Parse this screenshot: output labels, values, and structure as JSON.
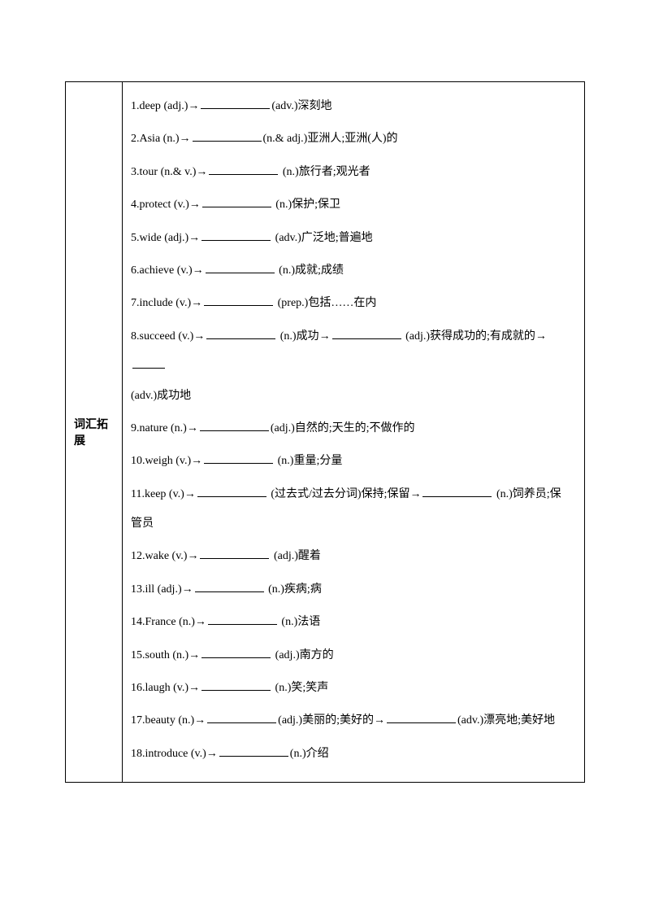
{
  "sidebar_label": "词汇拓展",
  "items": [
    {
      "n": "1",
      "word": "deep",
      "pos1": "(adj.)",
      "arrow": "→",
      "blank": true,
      "pos2": "(adv.)",
      "def": "深刻地"
    },
    {
      "n": "2",
      "word": "Asia",
      "pos1": "(n.)",
      "arrow": "→",
      "blank": true,
      "pos2": "(n.& adj.)",
      "def": "亚洲人;亚洲(人)的"
    },
    {
      "n": "3",
      "word": "tour",
      "pos1": "(n.& v.)",
      "arrow": "→",
      "blank": true,
      "pos2": " (n.)",
      "def": "旅行者;观光者"
    },
    {
      "n": "4",
      "word": "protect",
      "pos1": "(v.)",
      "arrow": "→",
      "blank": true,
      "pos2": " (n.)",
      "def": "保护;保卫"
    },
    {
      "n": "5",
      "word": "wide",
      "pos1": "(adj.)",
      "arrow": "→",
      "blank": true,
      "pos2": " (adv.)",
      "def": "广泛地;普遍地"
    },
    {
      "n": "6",
      "word": "achieve",
      "pos1": "(v.)",
      "arrow": "→",
      "blank": true,
      "pos2": " (n.)",
      "def": "成就;成绩"
    },
    {
      "n": "7",
      "word": "include",
      "pos1": "(v.)",
      "arrow": "→",
      "blank": true,
      "pos2": " (prep.)",
      "def": "包括……在内"
    },
    {
      "n": "8",
      "word": "succeed",
      "pos1": "(v.)",
      "arrow": "→",
      "blank": true,
      "pos2": " (n.)",
      "def": "成功",
      "arrow2": "→",
      "blank2": true,
      "pos3": " (adj.)",
      "def2": "获得成功的;有成就的",
      "arrow3": "→",
      "blank3": "short",
      "trail_pos": " (adv.)",
      "trail_def": "成功地"
    },
    {
      "n": "9",
      "word": "nature",
      "pos1": "(n.)",
      "arrow": "→",
      "blank": true,
      "pos2": "(adj.)",
      "def": "自然的;天生的;不做作的"
    },
    {
      "n": "10",
      "word": "weigh",
      "pos1": "(v.)",
      "arrow": "→",
      "blank": true,
      "pos2": " (n.)",
      "def": "重量;分量"
    },
    {
      "n": "11",
      "word": "keep",
      "pos1": "(v.)",
      "arrow": "→",
      "blank": true,
      "pos2": " (过去式/过去分词)",
      "def": "保持;保留",
      "arrow2": "→",
      "blank2": true,
      "pos3": " (n.)",
      "def2": "饲养员;保",
      "trail_def": "管员"
    },
    {
      "n": "12",
      "word": "wake",
      "pos1": "(v.)",
      "arrow": "→",
      "blank": true,
      "pos2": " (adj.)",
      "def": "醒着"
    },
    {
      "n": "13",
      "word": "ill",
      "pos1": "(adj.)",
      "arrow": "→",
      "blank": true,
      "pos2": " (n.)",
      "def": "疾病;病"
    },
    {
      "n": "14",
      "word": "France",
      "pos1": "(n.)",
      "arrow": "→",
      "blank": true,
      "pos2": " (n.)",
      "def": "法语"
    },
    {
      "n": "15",
      "word": "south",
      "pos1": "(n.)",
      "arrow": "→",
      "blank": true,
      "pos2": " (adj.)",
      "def": "南方的"
    },
    {
      "n": "16",
      "word": "laugh",
      "pos1": "(v.)",
      "arrow": "→",
      "blank": true,
      "pos2": " (n.)",
      "def": "笑;笑声"
    },
    {
      "n": "17",
      "word": "beauty",
      "pos1": "(n.)",
      "arrow": "→",
      "blank": true,
      "pos2": "(adj.)",
      "def": "美丽的;美好的",
      "arrow2": "→",
      "blank2": true,
      "pos3": "(adv.)",
      "def2": "漂亮地;美好地"
    },
    {
      "n": "18",
      "word": "introduce",
      "pos1": "(v.)",
      "arrow": "→",
      "blank": true,
      "pos2": "(n.)",
      "def": "介绍"
    }
  ]
}
